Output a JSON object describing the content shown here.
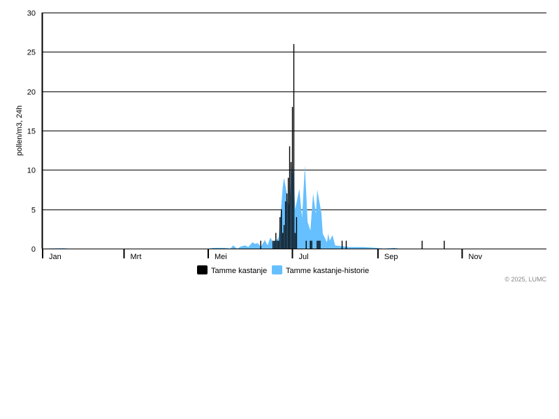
{
  "chart_data": {
    "type": "bar",
    "title": "",
    "xlabel": "",
    "ylabel": "pollen/m3, 24h",
    "ylim": [
      0,
      30
    ],
    "yticks": [
      0,
      5,
      10,
      15,
      20,
      25,
      30
    ],
    "xlim": [
      "2025-01-01",
      "2025-12-31"
    ],
    "xticks": [
      {
        "date": "2025-01-01",
        "label": "Jan"
      },
      {
        "date": "2025-03-01",
        "label": "Mrt"
      },
      {
        "date": "2025-05-01",
        "label": "Mei"
      },
      {
        "date": "2025-07-01",
        "label": "Jul"
      },
      {
        "date": "2025-09-01",
        "label": "Sep"
      },
      {
        "date": "2025-11-01",
        "label": "Nov"
      }
    ],
    "grid": true,
    "legend_placement": "bottom",
    "series": [
      {
        "name": "Tamme kastanje",
        "type": "bar",
        "color": "#000000",
        "points": [
          [
            "2025-06-08",
            1
          ],
          [
            "2025-06-17",
            1
          ],
          [
            "2025-06-18",
            1
          ],
          [
            "2025-06-19",
            2
          ],
          [
            "2025-06-20",
            1
          ],
          [
            "2025-06-21",
            1
          ],
          [
            "2025-06-22",
            4
          ],
          [
            "2025-06-23",
            5
          ],
          [
            "2025-06-24",
            2
          ],
          [
            "2025-06-25",
            3
          ],
          [
            "2025-06-26",
            6
          ],
          [
            "2025-06-27",
            7
          ],
          [
            "2025-06-28",
            9
          ],
          [
            "2025-06-29",
            13
          ],
          [
            "2025-06-30",
            11
          ],
          [
            "2025-07-01",
            18
          ],
          [
            "2025-07-02",
            26
          ],
          [
            "2025-07-03",
            2
          ],
          [
            "2025-07-04",
            4
          ],
          [
            "2025-07-11",
            1
          ],
          [
            "2025-07-14",
            1
          ],
          [
            "2025-07-15",
            1
          ],
          [
            "2025-07-19",
            1
          ],
          [
            "2025-07-20",
            1
          ],
          [
            "2025-07-21",
            1
          ],
          [
            "2025-08-06",
            1
          ],
          [
            "2025-08-09",
            1
          ],
          [
            "2025-10-03",
            1
          ],
          [
            "2025-10-19",
            1
          ]
        ]
      },
      {
        "name": "Tamme kastanje-historie",
        "type": "area",
        "color": "#66bfff",
        "points": [
          [
            "2025-01-01",
            0
          ],
          [
            "2025-01-16",
            0.05
          ],
          [
            "2025-01-20",
            0
          ],
          [
            "2025-05-01",
            0
          ],
          [
            "2025-05-05",
            0.1
          ],
          [
            "2025-05-13",
            0.1
          ],
          [
            "2025-05-17",
            0
          ],
          [
            "2025-05-19",
            0.4
          ],
          [
            "2025-05-22",
            0
          ],
          [
            "2025-05-25",
            0.3
          ],
          [
            "2025-05-28",
            0.4
          ],
          [
            "2025-05-30",
            0.2
          ],
          [
            "2025-06-02",
            0.8
          ],
          [
            "2025-06-04",
            0.6
          ],
          [
            "2025-06-06",
            0.7
          ],
          [
            "2025-06-08",
            0.2
          ],
          [
            "2025-06-11",
            1.1
          ],
          [
            "2025-06-13",
            0.4
          ],
          [
            "2025-06-15",
            1.4
          ],
          [
            "2025-06-17",
            0.8
          ],
          [
            "2025-06-20",
            1.2
          ],
          [
            "2025-06-21",
            1.4
          ],
          [
            "2025-06-23",
            5.6
          ],
          [
            "2025-06-24",
            7.9
          ],
          [
            "2025-06-25",
            9
          ],
          [
            "2025-06-27",
            6.9
          ],
          [
            "2025-06-28",
            5.2
          ],
          [
            "2025-06-29",
            6
          ],
          [
            "2025-06-30",
            9
          ],
          [
            "2025-07-01",
            11
          ],
          [
            "2025-07-02",
            8.8
          ],
          [
            "2025-07-03",
            5
          ],
          [
            "2025-07-06",
            7.6
          ],
          [
            "2025-07-08",
            3.9
          ],
          [
            "2025-07-10",
            10.6
          ],
          [
            "2025-07-12",
            3.4
          ],
          [
            "2025-07-14",
            2.3
          ],
          [
            "2025-07-16",
            7
          ],
          [
            "2025-07-18",
            4.4
          ],
          [
            "2025-07-19",
            7.5
          ],
          [
            "2025-07-22",
            4.5
          ],
          [
            "2025-07-23",
            1.9
          ],
          [
            "2025-07-26",
            0.8
          ],
          [
            "2025-07-27",
            1.9
          ],
          [
            "2025-07-28",
            1
          ],
          [
            "2025-07-30",
            1.7
          ],
          [
            "2025-08-01",
            0.4
          ],
          [
            "2025-08-06",
            0.3
          ],
          [
            "2025-08-11",
            0.2
          ],
          [
            "2025-08-21",
            0.2
          ],
          [
            "2025-08-31",
            0.1
          ],
          [
            "2025-09-05",
            0
          ],
          [
            "2025-09-13",
            0.1
          ],
          [
            "2025-09-16",
            0
          ],
          [
            "2025-12-31",
            0
          ]
        ]
      }
    ]
  },
  "footer": {
    "copyright": "© 2025, LUMC"
  }
}
